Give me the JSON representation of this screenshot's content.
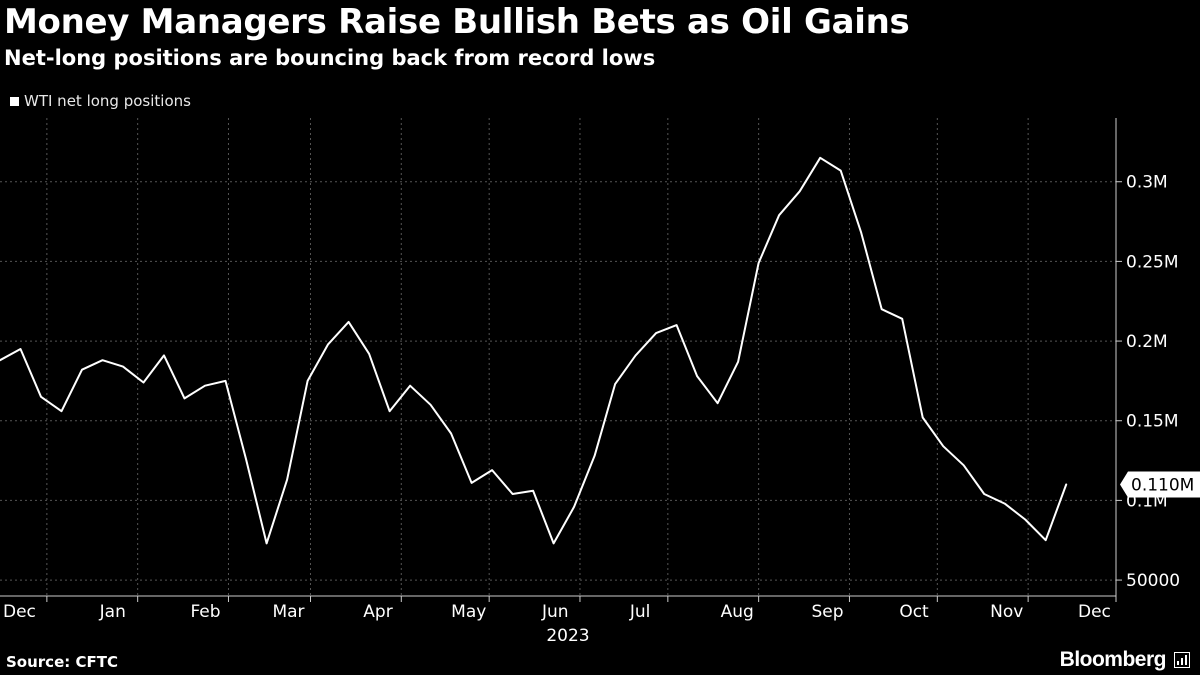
{
  "header": {
    "title": "Money Managers Raise Bullish Bets as Oil Gains",
    "subtitle": "Net-long positions are bouncing back from record lows"
  },
  "footer": {
    "source": "Source: CFTC",
    "brand": "Bloomberg"
  },
  "colors": {
    "background": "#000000",
    "line": "#ffffff",
    "grid": "#555555",
    "text": "#ffffff"
  },
  "chart_data": {
    "type": "line",
    "legend_position": "top-left",
    "grid": true,
    "series": [
      {
        "name": "WTI net long positions",
        "points": [
          [
            "2022-11-29",
            188000
          ],
          [
            "2022-12-06",
            195000
          ],
          [
            "2022-12-13",
            165000
          ],
          [
            "2022-12-20",
            156000
          ],
          [
            "2022-12-27",
            182000
          ],
          [
            "2023-01-03",
            188000
          ],
          [
            "2023-01-10",
            184000
          ],
          [
            "2023-01-17",
            174000
          ],
          [
            "2023-01-24",
            191000
          ],
          [
            "2023-01-31",
            164000
          ],
          [
            "2023-02-07",
            172000
          ],
          [
            "2023-02-14",
            175000
          ],
          [
            "2023-02-21",
            126000
          ],
          [
            "2023-02-28",
            73000
          ],
          [
            "2023-03-07",
            113000
          ],
          [
            "2023-03-14",
            175000
          ],
          [
            "2023-03-21",
            198000
          ],
          [
            "2023-03-28",
            212000
          ],
          [
            "2023-04-04",
            192000
          ],
          [
            "2023-04-11",
            156000
          ],
          [
            "2023-04-18",
            172000
          ],
          [
            "2023-04-25",
            160000
          ],
          [
            "2023-05-02",
            142000
          ],
          [
            "2023-05-09",
            111000
          ],
          [
            "2023-05-16",
            119000
          ],
          [
            "2023-05-23",
            104000
          ],
          [
            "2023-05-30",
            106000
          ],
          [
            "2023-06-06",
            73000
          ],
          [
            "2023-06-13",
            96000
          ],
          [
            "2023-06-20",
            128000
          ],
          [
            "2023-06-27",
            173000
          ],
          [
            "2023-07-04",
            191000
          ],
          [
            "2023-07-11",
            205000
          ],
          [
            "2023-07-18",
            210000
          ],
          [
            "2023-07-25",
            178000
          ],
          [
            "2023-08-01",
            161000
          ],
          [
            "2023-08-08",
            187000
          ],
          [
            "2023-08-15",
            249000
          ],
          [
            "2023-08-22",
            279000
          ],
          [
            "2023-08-29",
            294000
          ],
          [
            "2023-09-05",
            315000
          ],
          [
            "2023-09-12",
            307000
          ],
          [
            "2023-09-19",
            268000
          ],
          [
            "2023-09-26",
            220000
          ],
          [
            "2023-10-03",
            214000
          ],
          [
            "2023-10-10",
            152000
          ],
          [
            "2023-10-17",
            134000
          ],
          [
            "2023-10-24",
            122000
          ],
          [
            "2023-10-31",
            104000
          ],
          [
            "2023-11-07",
            98000
          ],
          [
            "2023-11-14",
            88000
          ],
          [
            "2023-11-21",
            75000
          ],
          [
            "2023-11-28",
            110000
          ]
        ]
      }
    ],
    "last_value_label": "0.110M",
    "x_range": [
      "2022-11-29",
      "2023-12-15"
    ],
    "y_range": [
      40000,
      340000
    ],
    "y_ticks": [
      {
        "value": 300000,
        "label": "0.3M"
      },
      {
        "value": 250000,
        "label": "0.25M"
      },
      {
        "value": 200000,
        "label": "0.2M"
      },
      {
        "value": 150000,
        "label": "0.15M"
      },
      {
        "value": 100000,
        "label": "0.1M"
      },
      {
        "value": 50000,
        "label": "50000"
      }
    ],
    "x_ticks": [
      {
        "date": "2022-12-01",
        "label": "Dec"
      },
      {
        "date": "2023-01-01",
        "label": "Jan"
      },
      {
        "date": "2023-02-01",
        "label": "Feb"
      },
      {
        "date": "2023-03-01",
        "label": "Mar"
      },
      {
        "date": "2023-04-01",
        "label": "Apr"
      },
      {
        "date": "2023-05-01",
        "label": "May"
      },
      {
        "date": "2023-06-01",
        "label": "Jun"
      },
      {
        "date": "2023-07-01",
        "label": "Jul"
      },
      {
        "date": "2023-08-01",
        "label": "Aug"
      },
      {
        "date": "2023-09-01",
        "label": "Sep"
      },
      {
        "date": "2023-10-01",
        "label": "Oct"
      },
      {
        "date": "2023-11-01",
        "label": "Nov"
      },
      {
        "date": "2023-12-01",
        "label": "Dec"
      }
    ],
    "x_gridlines": [
      "2022-12-15",
      "2023-01-15",
      "2023-02-15",
      "2023-03-15",
      "2023-04-15",
      "2023-05-15",
      "2023-06-15",
      "2023-07-15",
      "2023-08-15",
      "2023-09-15",
      "2023-10-15",
      "2023-11-15",
      "2023-12-15"
    ],
    "year_label": "2023"
  }
}
